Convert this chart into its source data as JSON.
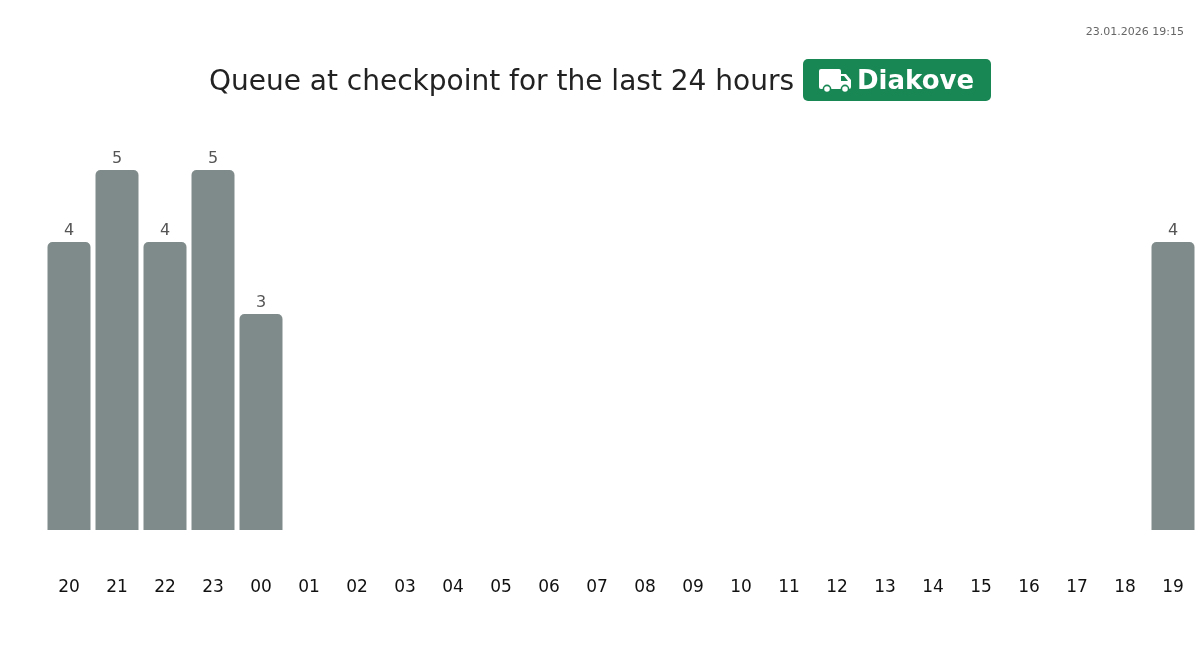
{
  "chart_data": {
    "type": "bar",
    "title": "Queue at checkpoint for the last 24 hours",
    "subtitle": "Diakove",
    "annotations": [
      "23.01.2026 19:15"
    ],
    "categories": [
      "20",
      "21",
      "22",
      "23",
      "00",
      "01",
      "02",
      "03",
      "04",
      "05",
      "06",
      "07",
      "08",
      "09",
      "10",
      "11",
      "12",
      "13",
      "14",
      "15",
      "16",
      "17",
      "18",
      "19"
    ],
    "values": [
      4,
      5,
      4,
      5,
      3,
      null,
      null,
      null,
      null,
      null,
      null,
      null,
      null,
      null,
      null,
      null,
      null,
      null,
      null,
      null,
      null,
      null,
      null,
      4
    ],
    "color": "#7f8b8a",
    "data_labels": true,
    "tick_labels": "x"
  }
}
